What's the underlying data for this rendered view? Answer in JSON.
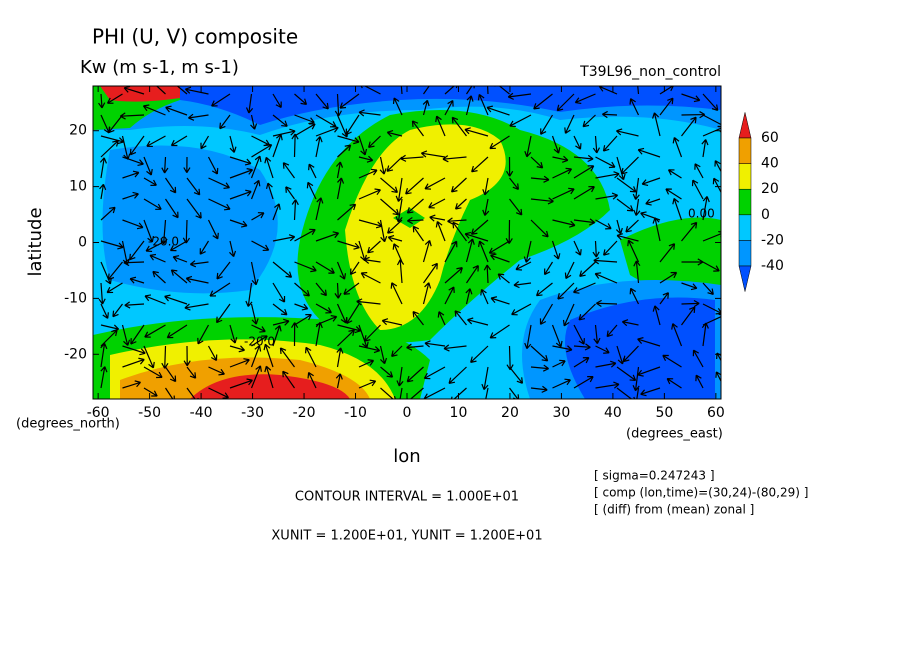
{
  "chart_data": {
    "type": "contour",
    "title": "PHI (U, V) composite",
    "subtitle": "Kw (m s-1, m s-1)",
    "run_label": "T39L96_non_control",
    "xlabel": "lon",
    "xunit_label": "(degrees_east)",
    "ylabel": "latitude",
    "yunit_label": "(degrees_north)",
    "xlim": [
      -61,
      61
    ],
    "xticks": [
      -60,
      -50,
      -40,
      -30,
      -20,
      -10,
      0,
      10,
      20,
      30,
      40,
      50,
      60
    ],
    "ylim": [
      -28,
      28
    ],
    "yticks": [
      -20,
      -10,
      0,
      10,
      20
    ],
    "colorbar": {
      "levels": [
        -40,
        -20,
        0,
        20,
        40,
        60
      ],
      "colors": [
        "#0050ff",
        "#0096ff",
        "#00c8ff",
        "#00d200",
        "#f0f000",
        "#f0a000",
        "#e61e1e"
      ]
    },
    "contour_labels": [
      "-20.0",
      "0.00",
      "-20.0"
    ],
    "contour_interval": "CONTOUR INTERVAL = 1.000E+01",
    "vector_units": "XUNIT = 1.200E+01, YUNIT = 1.200E+01",
    "info": [
      "[ sigma=0.247243 ]",
      "[ comp (lon,time)=(30,24)-(80,29) ]",
      "[ (diff) from (mean) zonal ]"
    ]
  }
}
